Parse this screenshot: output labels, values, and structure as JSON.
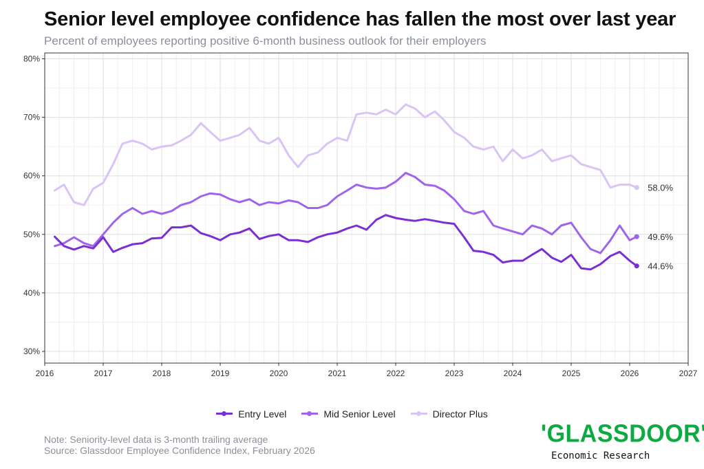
{
  "title": "Senior level employee confidence has fallen the most over last year",
  "subtitle": "Percent of employees reporting positive 6-month business outlook for their employers",
  "note": "Note: Seniority-level data is 3-month trailing average",
  "source": "Source: Glassdoor Employee Confidence Index, February 2026",
  "brand": {
    "logo_text": "'GLASSDOOR'",
    "tagline": "Economic Research",
    "color": "#0caa41"
  },
  "chart_data": {
    "type": "line",
    "title": "Senior level employee confidence has fallen the most over last year",
    "xlabel": "",
    "ylabel": "",
    "x_unit": "year",
    "xlim": [
      2016,
      2027
    ],
    "ylim": [
      28,
      81
    ],
    "x_ticks": [
      "2016",
      "2017",
      "2018",
      "2019",
      "2020",
      "2021",
      "2022",
      "2023",
      "2024",
      "2025",
      "2026",
      "2027"
    ],
    "y_ticks": [
      "30%",
      "40%",
      "50%",
      "60%",
      "70%",
      "80%"
    ],
    "grid": true,
    "legend_position": "bottom",
    "series": [
      {
        "name": "Entry Level",
        "color": "#7a2fd6",
        "end_label": "44.6%",
        "points": [
          [
            2016.17,
            49.6
          ],
          [
            2016.33,
            48.0
          ],
          [
            2016.5,
            47.4
          ],
          [
            2016.67,
            48.0
          ],
          [
            2016.83,
            47.6
          ],
          [
            2017.0,
            49.5
          ],
          [
            2017.17,
            47.0
          ],
          [
            2017.33,
            47.7
          ],
          [
            2017.5,
            48.3
          ],
          [
            2017.67,
            48.5
          ],
          [
            2017.83,
            49.3
          ],
          [
            2018.0,
            49.4
          ],
          [
            2018.17,
            51.2
          ],
          [
            2018.33,
            51.2
          ],
          [
            2018.5,
            51.5
          ],
          [
            2018.67,
            50.2
          ],
          [
            2018.83,
            49.7
          ],
          [
            2019.0,
            49.0
          ],
          [
            2019.17,
            50.0
          ],
          [
            2019.33,
            50.3
          ],
          [
            2019.5,
            51.0
          ],
          [
            2019.67,
            49.2
          ],
          [
            2019.83,
            49.7
          ],
          [
            2020.0,
            50.0
          ],
          [
            2020.17,
            49.0
          ],
          [
            2020.33,
            49.0
          ],
          [
            2020.5,
            48.7
          ],
          [
            2020.67,
            49.5
          ],
          [
            2020.83,
            50.0
          ],
          [
            2021.0,
            50.3
          ],
          [
            2021.17,
            51.0
          ],
          [
            2021.33,
            51.5
          ],
          [
            2021.5,
            50.8
          ],
          [
            2021.67,
            52.5
          ],
          [
            2021.83,
            53.3
          ],
          [
            2022.0,
            52.8
          ],
          [
            2022.17,
            52.5
          ],
          [
            2022.33,
            52.3
          ],
          [
            2022.5,
            52.6
          ],
          [
            2022.67,
            52.3
          ],
          [
            2022.83,
            52.0
          ],
          [
            2023.0,
            51.8
          ],
          [
            2023.17,
            49.5
          ],
          [
            2023.33,
            47.2
          ],
          [
            2023.5,
            47.0
          ],
          [
            2023.67,
            46.5
          ],
          [
            2023.83,
            45.2
          ],
          [
            2024.0,
            45.5
          ],
          [
            2024.17,
            45.5
          ],
          [
            2024.33,
            46.5
          ],
          [
            2024.5,
            47.5
          ],
          [
            2024.67,
            46.0
          ],
          [
            2024.83,
            45.3
          ],
          [
            2025.0,
            46.5
          ],
          [
            2025.17,
            44.2
          ],
          [
            2025.33,
            44.0
          ],
          [
            2025.5,
            44.9
          ],
          [
            2025.67,
            46.3
          ],
          [
            2025.83,
            47.0
          ],
          [
            2026.0,
            45.5
          ],
          [
            2026.12,
            44.6
          ]
        ]
      },
      {
        "name": "Mid Senior Level",
        "color": "#a064ec",
        "end_label": "49.6%",
        "points": [
          [
            2016.17,
            48.0
          ],
          [
            2016.33,
            48.5
          ],
          [
            2016.5,
            49.5
          ],
          [
            2016.67,
            48.5
          ],
          [
            2016.83,
            48.0
          ],
          [
            2017.0,
            50.0
          ],
          [
            2017.17,
            52.0
          ],
          [
            2017.33,
            53.5
          ],
          [
            2017.5,
            54.5
          ],
          [
            2017.67,
            53.5
          ],
          [
            2017.83,
            54.0
          ],
          [
            2018.0,
            53.5
          ],
          [
            2018.17,
            54.0
          ],
          [
            2018.33,
            55.0
          ],
          [
            2018.5,
            55.5
          ],
          [
            2018.67,
            56.5
          ],
          [
            2018.83,
            57.0
          ],
          [
            2019.0,
            56.8
          ],
          [
            2019.17,
            56.0
          ],
          [
            2019.33,
            55.5
          ],
          [
            2019.5,
            56.0
          ],
          [
            2019.67,
            55.0
          ],
          [
            2019.83,
            55.5
          ],
          [
            2020.0,
            55.3
          ],
          [
            2020.17,
            55.8
          ],
          [
            2020.33,
            55.5
          ],
          [
            2020.5,
            54.5
          ],
          [
            2020.67,
            54.5
          ],
          [
            2020.83,
            55.0
          ],
          [
            2021.0,
            56.5
          ],
          [
            2021.17,
            57.5
          ],
          [
            2021.33,
            58.5
          ],
          [
            2021.5,
            58.0
          ],
          [
            2021.67,
            57.8
          ],
          [
            2021.83,
            58.0
          ],
          [
            2022.0,
            59.0
          ],
          [
            2022.17,
            60.5
          ],
          [
            2022.33,
            59.8
          ],
          [
            2022.5,
            58.5
          ],
          [
            2022.67,
            58.3
          ],
          [
            2022.83,
            57.5
          ],
          [
            2023.0,
            56.0
          ],
          [
            2023.17,
            54.0
          ],
          [
            2023.33,
            53.5
          ],
          [
            2023.5,
            54.0
          ],
          [
            2023.67,
            51.5
          ],
          [
            2023.83,
            51.0
          ],
          [
            2024.0,
            50.5
          ],
          [
            2024.17,
            50.0
          ],
          [
            2024.33,
            51.5
          ],
          [
            2024.5,
            51.0
          ],
          [
            2024.67,
            50.0
          ],
          [
            2024.83,
            51.5
          ],
          [
            2025.0,
            52.0
          ],
          [
            2025.17,
            49.5
          ],
          [
            2025.33,
            47.5
          ],
          [
            2025.5,
            46.8
          ],
          [
            2025.67,
            49.0
          ],
          [
            2025.83,
            51.5
          ],
          [
            2026.0,
            49.0
          ],
          [
            2026.12,
            49.6
          ]
        ]
      },
      {
        "name": "Director Plus",
        "color": "#d9c4f5",
        "end_label": "58.0%",
        "points": [
          [
            2016.17,
            57.5
          ],
          [
            2016.33,
            58.5
          ],
          [
            2016.5,
            55.5
          ],
          [
            2016.67,
            55.0
          ],
          [
            2016.83,
            57.8
          ],
          [
            2017.0,
            58.8
          ],
          [
            2017.17,
            62.0
          ],
          [
            2017.33,
            65.5
          ],
          [
            2017.5,
            66.0
          ],
          [
            2017.67,
            65.5
          ],
          [
            2017.83,
            64.5
          ],
          [
            2018.0,
            65.0
          ],
          [
            2018.17,
            65.2
          ],
          [
            2018.33,
            66.0
          ],
          [
            2018.5,
            67.0
          ],
          [
            2018.67,
            69.0
          ],
          [
            2018.83,
            67.5
          ],
          [
            2019.0,
            66.0
          ],
          [
            2019.17,
            66.5
          ],
          [
            2019.33,
            67.0
          ],
          [
            2019.5,
            68.2
          ],
          [
            2019.67,
            66.0
          ],
          [
            2019.83,
            65.5
          ],
          [
            2020.0,
            66.5
          ],
          [
            2020.17,
            63.5
          ],
          [
            2020.33,
            61.5
          ],
          [
            2020.5,
            63.5
          ],
          [
            2020.67,
            64.0
          ],
          [
            2020.83,
            65.5
          ],
          [
            2021.0,
            66.5
          ],
          [
            2021.17,
            66.0
          ],
          [
            2021.33,
            70.5
          ],
          [
            2021.5,
            70.8
          ],
          [
            2021.67,
            70.5
          ],
          [
            2021.83,
            71.3
          ],
          [
            2022.0,
            70.5
          ],
          [
            2022.17,
            72.2
          ],
          [
            2022.33,
            71.5
          ],
          [
            2022.5,
            70.0
          ],
          [
            2022.67,
            71.0
          ],
          [
            2022.83,
            69.5
          ],
          [
            2023.0,
            67.5
          ],
          [
            2023.17,
            66.5
          ],
          [
            2023.33,
            65.0
          ],
          [
            2023.5,
            64.5
          ],
          [
            2023.67,
            65.0
          ],
          [
            2023.83,
            62.5
          ],
          [
            2024.0,
            64.5
          ],
          [
            2024.17,
            63.0
          ],
          [
            2024.33,
            63.5
          ],
          [
            2024.5,
            64.5
          ],
          [
            2024.67,
            62.5
          ],
          [
            2024.83,
            63.0
          ],
          [
            2025.0,
            63.5
          ],
          [
            2025.17,
            62.0
          ],
          [
            2025.33,
            61.5
          ],
          [
            2025.5,
            61.0
          ],
          [
            2025.67,
            58.0
          ],
          [
            2025.83,
            58.5
          ],
          [
            2026.0,
            58.5
          ],
          [
            2026.12,
            58.0
          ]
        ]
      }
    ]
  }
}
